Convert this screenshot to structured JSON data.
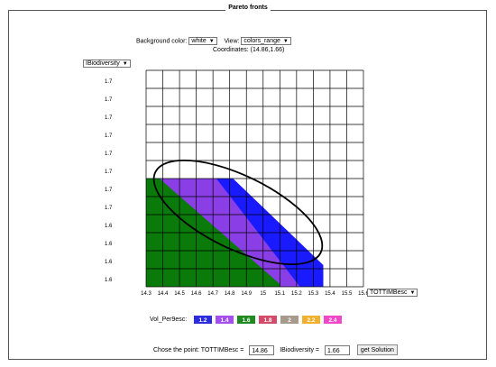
{
  "window": {
    "title": "Pareto fronts"
  },
  "controls": {
    "background_label": "Background color:",
    "background_value": "white",
    "view_label": "View:",
    "view_value": "colors_range",
    "coordinates_label": "Coordinates: (14.86,1.66)"
  },
  "y_axis_select": "IBiodiversity",
  "x_axis_select": "TOTTIMBesc",
  "arrow_glyph": "▼",
  "chart_data": {
    "type": "area",
    "xlim": [
      14.3,
      15.6
    ],
    "ylim": [
      1.6,
      1.76
    ],
    "x_ticks": [
      "14.3",
      "14.4",
      "14.5",
      "14.6",
      "14.7",
      "14.8",
      "14.9",
      "15",
      "15.1",
      "15.2",
      "15.3",
      "15.4",
      "15.5",
      "15.6"
    ],
    "y_ticks": [
      "1.7",
      "1.7",
      "1.7",
      "1.7",
      "1.7",
      "1.7",
      "1.7",
      "1.7",
      "1.6",
      "1.6",
      "1.6",
      "1.6"
    ],
    "grid": true,
    "series": [
      {
        "color": "#1a1aff",
        "points": [
          [
            14.3,
            1.68
          ],
          [
            14.82,
            1.68
          ],
          [
            15.36,
            1.616
          ],
          [
            15.36,
            1.6
          ],
          [
            14.3,
            1.6
          ]
        ]
      },
      {
        "color": "#8a3fe6",
        "points": [
          [
            14.3,
            1.68
          ],
          [
            14.72,
            1.68
          ],
          [
            15.22,
            1.6
          ],
          [
            14.3,
            1.6
          ]
        ]
      },
      {
        "color": "#0a7a0a",
        "points": [
          [
            14.3,
            1.68
          ],
          [
            14.38,
            1.68
          ],
          [
            15.1,
            1.602
          ],
          [
            15.1,
            1.6
          ],
          [
            14.3,
            1.6
          ]
        ]
      }
    ],
    "annotation": {
      "shape": "ellipse",
      "center": [
        14.85,
        1.655
      ],
      "rx": 0.55,
      "ry": 0.027,
      "rotation_deg": 26
    }
  },
  "legend": {
    "label": "Vol_Per9esc:",
    "items": [
      {
        "label": "1.2",
        "color": "#2b2be0"
      },
      {
        "label": "1.4",
        "color": "#a64ff0"
      },
      {
        "label": "1.6",
        "color": "#1f8a1f"
      },
      {
        "label": "1.8",
        "color": "#d34a6a"
      },
      {
        "label": "2",
        "color": "#a89a8a"
      },
      {
        "label": "2.2",
        "color": "#f0b030"
      },
      {
        "label": "2.4",
        "color": "#f048c8"
      }
    ]
  },
  "bottom": {
    "prefix": "Chose the point:  TOTTIMBesc =",
    "x_value": "14.86",
    "y_label": "IBiodiversity =",
    "y_value": "1.66",
    "button": "get Solution"
  }
}
